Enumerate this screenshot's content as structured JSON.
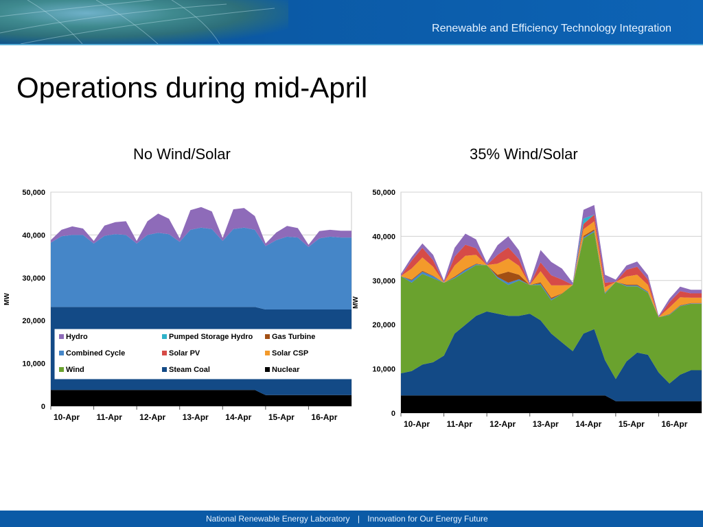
{
  "header": {
    "tagline": "Renewable and Efficiency Technology Integration"
  },
  "slide": {
    "title": "Operations during mid-April"
  },
  "footer": {
    "org": "National Renewable Energy Laboratory",
    "separator": "|",
    "slogan": "Innovation for Our Energy Future"
  },
  "colors": {
    "Hydro": "#8e6bb9",
    "Pumped Storage Hydro": "#2fb3c9",
    "Gas Turbine": "#a24f14",
    "Combined Cycle": "#4586c8",
    "Solar PV": "#d64b47",
    "Solar CSP": "#f39a2b",
    "Wind": "#6aa22e",
    "Steam Coal": "#134a86",
    "Nuclear": "#000000"
  },
  "chart_data": [
    {
      "type": "area",
      "title": "No Wind/Solar",
      "ylabel": "MW",
      "ylim": [
        0,
        50000
      ],
      "yticks": [
        "0",
        "10,000",
        "20,000",
        "30,000",
        "40,000",
        "50,000"
      ],
      "categories": [
        "10-Apr",
        "11-Apr",
        "12-Apr",
        "13-Apr",
        "14-Apr",
        "15-Apr",
        "16-Apr"
      ],
      "x": [
        0,
        0.25,
        0.5,
        0.75,
        1,
        1.25,
        1.5,
        1.75,
        2,
        2.25,
        2.5,
        2.75,
        3,
        3.25,
        3.5,
        3.75,
        4,
        4.25,
        4.5,
        4.75,
        5,
        5.25,
        5.5,
        5.75,
        6,
        6.25,
        6.5,
        6.75
      ],
      "legend_items": [
        "Hydro",
        "Pumped Storage Hydro",
        "Gas Turbine",
        "Combined Cycle",
        "Solar PV",
        "Solar CSP",
        "Wind",
        "Steam Coal",
        "Nuclear"
      ],
      "series": [
        {
          "name": "Nuclear",
          "values": [
            3800,
            3800,
            3800,
            3800,
            3800,
            3800,
            3800,
            3800,
            3800,
            3800,
            3800,
            3800,
            3800,
            3800,
            3800,
            3800,
            3800,
            3800,
            3800,
            3800,
            2600,
            2600,
            2600,
            2600,
            2600,
            2600,
            2600,
            2600
          ]
        },
        {
          "name": "Steam Coal",
          "values": [
            19400,
            19400,
            19400,
            19400,
            19400,
            19400,
            19400,
            19400,
            19400,
            19400,
            19400,
            19400,
            19400,
            19400,
            19400,
            19400,
            19400,
            19400,
            19400,
            19400,
            20000,
            20000,
            20000,
            20000,
            20000,
            20000,
            20000,
            20000
          ]
        },
        {
          "name": "Combined Cycle",
          "values": [
            15000,
            16500,
            16800,
            16800,
            14800,
            16600,
            17000,
            16800,
            14800,
            16800,
            17300,
            17000,
            15200,
            18000,
            18500,
            18200,
            15400,
            18200,
            18500,
            18000,
            14800,
            16200,
            17000,
            16800,
            14600,
            16600,
            17000,
            16800
          ]
        },
        {
          "name": "Hydro",
          "values": [
            600,
            1500,
            2000,
            1500,
            600,
            2400,
            2800,
            3200,
            600,
            3200,
            4500,
            3600,
            800,
            4600,
            4800,
            4100,
            700,
            4600,
            4600,
            3200,
            600,
            1800,
            2500,
            2200,
            500,
            1700,
            1600,
            1600
          ]
        }
      ]
    },
    {
      "type": "area",
      "title": "35% Wind/Solar",
      "ylabel": "MW",
      "ylim": [
        0,
        50000
      ],
      "yticks": [
        "0",
        "10,000",
        "20,000",
        "30,000",
        "40,000",
        "50,000"
      ],
      "categories": [
        "10-Apr",
        "11-Apr",
        "12-Apr",
        "13-Apr",
        "14-Apr",
        "15-Apr",
        "16-Apr"
      ],
      "x": [
        0,
        0.25,
        0.5,
        0.75,
        1,
        1.25,
        1.5,
        1.75,
        2,
        2.25,
        2.5,
        2.75,
        3,
        3.25,
        3.5,
        3.75,
        4,
        4.25,
        4.5,
        4.75,
        5,
        5.25,
        5.5,
        5.75,
        6,
        6.25,
        6.5,
        6.75
      ],
      "series": [
        {
          "name": "Nuclear",
          "values": [
            4000,
            4000,
            4000,
            4000,
            4000,
            4000,
            4000,
            4000,
            4000,
            4000,
            4000,
            4000,
            4000,
            4000,
            4000,
            4000,
            4000,
            4000,
            4000,
            4000,
            2700,
            2700,
            2700,
            2700,
            2700,
            2700,
            2700,
            2700
          ]
        },
        {
          "name": "Steam Coal",
          "values": [
            5000,
            5500,
            7000,
            7500,
            9000,
            14000,
            16000,
            18000,
            19000,
            18500,
            18000,
            18000,
            18500,
            17000,
            14000,
            12000,
            10000,
            14000,
            15000,
            8000,
            5000,
            9000,
            11000,
            10500,
            6500,
            4000,
            6000,
            7000
          ]
        },
        {
          "name": "Wind",
          "values": [
            22000,
            20000,
            20500,
            19000,
            16500,
            12500,
            12000,
            11500,
            10500,
            8000,
            7000,
            8000,
            6500,
            8000,
            7500,
            11000,
            15000,
            21500,
            22000,
            15000,
            22000,
            17000,
            15000,
            14000,
            12500,
            15500,
            15500,
            15000
          ]
        },
        {
          "name": "Combined Cycle",
          "values": [
            0,
            500,
            500,
            500,
            0,
            200,
            400,
            200,
            0,
            300,
            500,
            300,
            0,
            300,
            300,
            0,
            0,
            300,
            300,
            200,
            0,
            200,
            200,
            200,
            0,
            100,
            100,
            100
          ]
        },
        {
          "name": "Gas Turbine",
          "values": [
            0,
            200,
            200,
            100,
            0,
            200,
            200,
            100,
            0,
            500,
            2500,
            1000,
            0,
            300,
            300,
            100,
            0,
            300,
            300,
            100,
            0,
            200,
            200,
            100,
            0,
            100,
            100,
            100
          ]
        },
        {
          "name": "Solar CSP",
          "values": [
            0,
            2500,
            3000,
            2000,
            0,
            2500,
            3000,
            2000,
            0,
            2500,
            3000,
            2000,
            0,
            2500,
            2800,
            1800,
            0,
            1500,
            1800,
            1200,
            0,
            1800,
            2200,
            1500,
            0,
            1500,
            1800,
            1200
          ]
        },
        {
          "name": "Solar PV",
          "values": [
            0,
            1800,
            2200,
            1500,
            0,
            2000,
            2500,
            1500,
            0,
            2000,
            2500,
            1500,
            0,
            2000,
            2300,
            1300,
            0,
            1200,
            1500,
            1000,
            0,
            1500,
            1800,
            1200,
            0,
            1200,
            1400,
            1000
          ]
        },
        {
          "name": "Pumped Storage Hydro",
          "values": [
            0,
            0,
            0,
            0,
            0,
            0,
            0,
            0,
            0,
            0,
            0,
            0,
            0,
            0,
            0,
            0,
            0,
            1200,
            0,
            0,
            0,
            0,
            0,
            0,
            0,
            0,
            0,
            0
          ]
        },
        {
          "name": "Hydro",
          "values": [
            500,
            800,
            1000,
            1200,
            500,
            2000,
            2500,
            2000,
            500,
            2200,
            2500,
            2000,
            500,
            2800,
            3000,
            2500,
            500,
            2000,
            2200,
            1800,
            500,
            1000,
            1200,
            1000,
            300,
            800,
            1000,
            800
          ]
        }
      ]
    }
  ]
}
